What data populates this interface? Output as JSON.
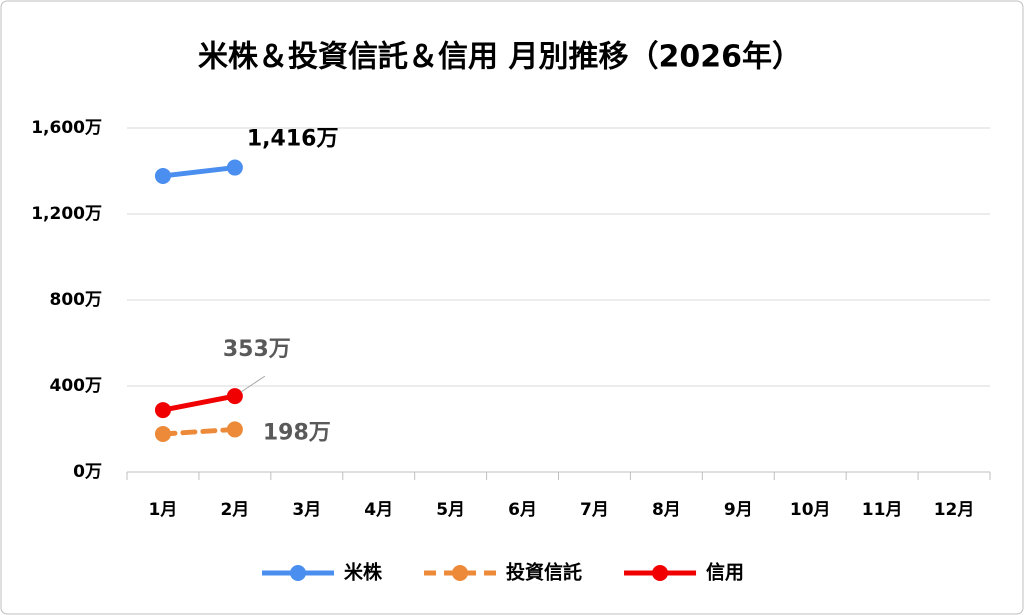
{
  "chart_data": {
    "type": "line",
    "title": "米株＆投資信託＆信用 月別推移（2026年）",
    "categories": [
      "1月",
      "2月",
      "3月",
      "4月",
      "5月",
      "6月",
      "7月",
      "8月",
      "9月",
      "10月",
      "11月",
      "12月"
    ],
    "series": [
      {
        "name": "米株",
        "color": "#4a8ef0",
        "dashed": false,
        "values": [
          1377,
          1416,
          null,
          null,
          null,
          null,
          null,
          null,
          null,
          null,
          null,
          null
        ],
        "value_labels": [
          null,
          "1,416万",
          null,
          null,
          null,
          null,
          null,
          null,
          null,
          null,
          null,
          null
        ]
      },
      {
        "name": "投資信託",
        "color": "#ed8a3a",
        "dashed": true,
        "values": [
          177,
          198,
          null,
          null,
          null,
          null,
          null,
          null,
          null,
          null,
          null,
          null
        ],
        "value_labels": [
          null,
          "198万",
          null,
          null,
          null,
          null,
          null,
          null,
          null,
          null,
          null,
          null
        ]
      },
      {
        "name": "信用",
        "color": "#f00000",
        "dashed": false,
        "values": [
          288,
          353,
          null,
          null,
          null,
          null,
          null,
          null,
          null,
          null,
          null,
          null
        ],
        "value_labels": [
          null,
          "353万",
          null,
          null,
          null,
          null,
          null,
          null,
          null,
          null,
          null,
          null
        ]
      }
    ],
    "ylim": [
      0,
      1600
    ],
    "yticks": [
      {
        "value": 0,
        "label": "0万"
      },
      {
        "value": 400,
        "label": "400万"
      },
      {
        "value": 800,
        "label": "800万"
      },
      {
        "value": 1200,
        "label": "1,200万"
      },
      {
        "value": 1600,
        "label": "1,600万"
      }
    ],
    "grid": true,
    "legend": "bottom"
  }
}
